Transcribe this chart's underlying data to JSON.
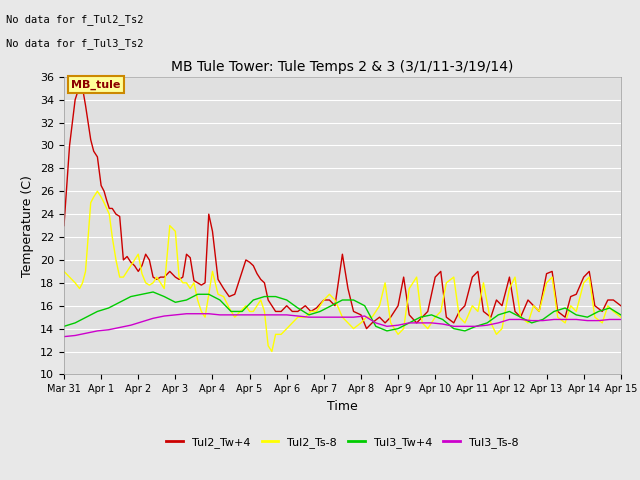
{
  "title": "MB Tule Tower: Tule Temps 2 & 3 (3/1/11-3/19/14)",
  "xlabel": "Time",
  "ylabel": "Temperature (C)",
  "ylim": [
    10,
    36
  ],
  "yticks": [
    10,
    12,
    14,
    16,
    18,
    20,
    22,
    24,
    26,
    28,
    30,
    32,
    34,
    36
  ],
  "fig_bg_color": "#e8e8e8",
  "plot_bg_color": "#e0e0e0",
  "grid_color": "#ffffff",
  "annotation_text1": "No data for f_Tul2_Ts2",
  "annotation_text2": "No data for f_Tul3_Ts2",
  "legend_label_text": "MB_tule",
  "xtick_labels": [
    "Mar 31",
    "Apr 1",
    "Apr 2",
    "Apr 3",
    "Apr 4",
    "Apr 5",
    "Apr 6",
    "Apr 7",
    "Apr 8",
    "Apr 9",
    "Apr 10",
    "Apr 11",
    "Apr 12",
    "Apr 13",
    "Apr 14",
    "Apr 15"
  ],
  "series": {
    "Tul2_Tw+4": {
      "color": "#cc0000",
      "x": [
        0.0,
        0.15,
        0.3,
        0.42,
        0.5,
        0.58,
        0.65,
        0.72,
        0.8,
        0.9,
        1.0,
        1.08,
        1.15,
        1.22,
        1.3,
        1.4,
        1.5,
        1.6,
        1.7,
        1.8,
        1.9,
        2.0,
        2.1,
        2.2,
        2.3,
        2.4,
        2.5,
        2.6,
        2.7,
        2.85,
        3.0,
        3.1,
        3.2,
        3.3,
        3.4,
        3.5,
        3.6,
        3.7,
        3.8,
        3.9,
        4.0,
        4.15,
        4.3,
        4.45,
        4.6,
        4.75,
        4.9,
        5.0,
        5.1,
        5.2,
        5.3,
        5.4,
        5.5,
        5.6,
        5.7,
        5.85,
        6.0,
        6.15,
        6.3,
        6.5,
        6.65,
        6.8,
        7.0,
        7.15,
        7.3,
        7.5,
        7.65,
        7.8,
        8.0,
        8.15,
        8.3,
        8.5,
        8.65,
        8.8,
        9.0,
        9.15,
        9.3,
        9.5,
        9.65,
        9.8,
        10.0,
        10.15,
        10.3,
        10.5,
        10.65,
        10.8,
        11.0,
        11.15,
        11.3,
        11.5,
        11.65,
        11.8,
        12.0,
        12.15,
        12.3,
        12.5,
        12.65,
        12.8,
        13.0,
        13.15,
        13.3,
        13.5,
        13.65,
        13.8,
        14.0,
        14.15,
        14.3,
        14.5,
        14.65,
        14.8,
        15.0
      ],
      "y": [
        23.0,
        30.0,
        34.0,
        35.2,
        35.0,
        33.5,
        32.0,
        30.5,
        29.5,
        29.0,
        26.5,
        26.0,
        25.2,
        24.5,
        24.5,
        24.0,
        23.8,
        20.0,
        20.3,
        19.8,
        19.5,
        19.0,
        19.5,
        20.5,
        20.0,
        18.5,
        18.3,
        18.5,
        18.5,
        19.0,
        18.5,
        18.3,
        18.5,
        20.5,
        20.2,
        18.2,
        18.0,
        17.8,
        18.0,
        24.0,
        22.5,
        18.3,
        17.5,
        16.8,
        17.0,
        18.5,
        20.0,
        19.8,
        19.5,
        18.8,
        18.3,
        18.0,
        16.5,
        16.0,
        15.5,
        15.5,
        16.0,
        15.5,
        15.5,
        16.0,
        15.5,
        15.8,
        16.5,
        16.5,
        16.0,
        20.5,
        17.5,
        15.5,
        15.2,
        14.0,
        14.5,
        15.0,
        14.5,
        15.0,
        16.0,
        18.5,
        15.2,
        14.5,
        15.0,
        15.5,
        18.5,
        19.0,
        15.0,
        14.5,
        15.5,
        16.0,
        18.5,
        19.0,
        15.5,
        15.0,
        16.5,
        16.0,
        18.5,
        15.5,
        15.0,
        16.5,
        16.0,
        15.5,
        18.8,
        19.0,
        15.5,
        15.0,
        16.8,
        17.0,
        18.5,
        19.0,
        16.0,
        15.5,
        16.5,
        16.5,
        16.0
      ]
    },
    "Tul2_Ts-8": {
      "color": "#ffff00",
      "x": [
        0.0,
        0.15,
        0.3,
        0.42,
        0.5,
        0.58,
        0.65,
        0.72,
        0.8,
        0.9,
        1.0,
        1.08,
        1.15,
        1.22,
        1.3,
        1.4,
        1.5,
        1.6,
        1.7,
        1.8,
        1.9,
        2.0,
        2.1,
        2.2,
        2.3,
        2.4,
        2.5,
        2.6,
        2.7,
        2.85,
        3.0,
        3.1,
        3.2,
        3.3,
        3.4,
        3.5,
        3.6,
        3.7,
        3.8,
        3.9,
        4.0,
        4.15,
        4.3,
        4.45,
        4.6,
        4.75,
        4.9,
        5.0,
        5.1,
        5.2,
        5.3,
        5.4,
        5.5,
        5.6,
        5.7,
        5.85,
        6.0,
        6.15,
        6.3,
        6.5,
        6.65,
        6.8,
        7.0,
        7.15,
        7.3,
        7.5,
        7.65,
        7.8,
        8.0,
        8.15,
        8.3,
        8.5,
        8.65,
        8.8,
        9.0,
        9.15,
        9.3,
        9.5,
        9.65,
        9.8,
        10.0,
        10.15,
        10.3,
        10.5,
        10.65,
        10.8,
        11.0,
        11.15,
        11.3,
        11.5,
        11.65,
        11.8,
        12.0,
        12.15,
        12.3,
        12.5,
        12.65,
        12.8,
        13.0,
        13.15,
        13.3,
        13.5,
        13.65,
        13.8,
        14.0,
        14.15,
        14.3,
        14.5,
        14.65,
        14.8,
        15.0
      ],
      "y": [
        19.0,
        18.5,
        18.0,
        17.5,
        18.0,
        19.0,
        22.0,
        25.0,
        25.5,
        26.0,
        25.5,
        25.0,
        24.5,
        24.0,
        22.0,
        20.0,
        18.5,
        18.5,
        19.0,
        19.5,
        20.0,
        20.5,
        18.8,
        18.0,
        17.8,
        18.0,
        18.5,
        18.0,
        17.5,
        23.0,
        22.5,
        18.5,
        18.0,
        18.0,
        17.5,
        18.0,
        16.5,
        15.5,
        15.0,
        17.0,
        19.0,
        17.0,
        16.8,
        15.8,
        15.0,
        15.5,
        16.0,
        15.5,
        15.5,
        16.0,
        16.5,
        15.5,
        12.5,
        12.0,
        13.5,
        13.5,
        14.0,
        14.5,
        15.0,
        15.0,
        15.5,
        15.5,
        16.5,
        17.0,
        16.5,
        15.0,
        14.5,
        14.0,
        14.5,
        15.0,
        15.0,
        16.0,
        18.0,
        14.5,
        13.5,
        14.0,
        17.5,
        18.5,
        14.5,
        14.0,
        15.0,
        15.5,
        18.0,
        18.5,
        15.0,
        14.5,
        16.0,
        15.5,
        18.0,
        14.5,
        13.5,
        14.0,
        17.5,
        18.5,
        15.0,
        14.5,
        16.0,
        15.5,
        18.0,
        18.5,
        15.0,
        14.5,
        16.0,
        15.5,
        18.0,
        18.5,
        15.0,
        14.5,
        16.0,
        15.5,
        15.0
      ]
    },
    "Tul3_Tw+4": {
      "color": "#00cc00",
      "x": [
        0.0,
        0.3,
        0.6,
        0.9,
        1.2,
        1.5,
        1.8,
        2.1,
        2.4,
        2.7,
        3.0,
        3.3,
        3.6,
        3.9,
        4.2,
        4.5,
        4.8,
        5.1,
        5.4,
        5.7,
        6.0,
        6.3,
        6.6,
        6.9,
        7.2,
        7.5,
        7.8,
        8.1,
        8.4,
        8.7,
        9.0,
        9.3,
        9.6,
        9.9,
        10.2,
        10.5,
        10.8,
        11.1,
        11.4,
        11.7,
        12.0,
        12.3,
        12.6,
        12.9,
        13.2,
        13.5,
        13.8,
        14.1,
        14.4,
        14.7,
        15.0
      ],
      "y": [
        14.2,
        14.5,
        15.0,
        15.5,
        15.8,
        16.3,
        16.8,
        17.0,
        17.2,
        16.8,
        16.3,
        16.5,
        17.0,
        17.0,
        16.5,
        15.5,
        15.5,
        16.5,
        16.8,
        16.8,
        16.5,
        15.8,
        15.2,
        15.5,
        16.0,
        16.5,
        16.5,
        16.0,
        14.2,
        13.8,
        14.0,
        14.5,
        15.0,
        15.2,
        14.8,
        14.0,
        13.8,
        14.2,
        14.5,
        15.2,
        15.5,
        15.0,
        14.5,
        14.8,
        15.5,
        15.8,
        15.2,
        15.0,
        15.5,
        15.8,
        15.2
      ]
    },
    "Tul3_Ts-8": {
      "color": "#cc00cc",
      "x": [
        0.0,
        0.3,
        0.6,
        0.9,
        1.2,
        1.5,
        1.8,
        2.1,
        2.4,
        2.7,
        3.0,
        3.3,
        3.6,
        3.9,
        4.2,
        4.5,
        4.8,
        5.1,
        5.4,
        5.7,
        6.0,
        6.3,
        6.6,
        6.9,
        7.2,
        7.5,
        7.8,
        8.1,
        8.4,
        8.7,
        9.0,
        9.3,
        9.6,
        9.9,
        10.2,
        10.5,
        10.8,
        11.1,
        11.4,
        11.7,
        12.0,
        12.3,
        12.6,
        12.9,
        13.2,
        13.5,
        13.8,
        14.1,
        14.4,
        14.7,
        15.0
      ],
      "y": [
        13.3,
        13.4,
        13.6,
        13.8,
        13.9,
        14.1,
        14.3,
        14.6,
        14.9,
        15.1,
        15.2,
        15.3,
        15.3,
        15.3,
        15.2,
        15.2,
        15.2,
        15.2,
        15.2,
        15.2,
        15.2,
        15.1,
        15.0,
        15.0,
        15.0,
        15.0,
        15.0,
        15.1,
        14.5,
        14.2,
        14.3,
        14.5,
        14.5,
        14.5,
        14.4,
        14.2,
        14.2,
        14.2,
        14.3,
        14.5,
        14.8,
        14.8,
        14.7,
        14.7,
        14.8,
        14.8,
        14.8,
        14.7,
        14.7,
        14.8,
        14.8
      ]
    }
  }
}
